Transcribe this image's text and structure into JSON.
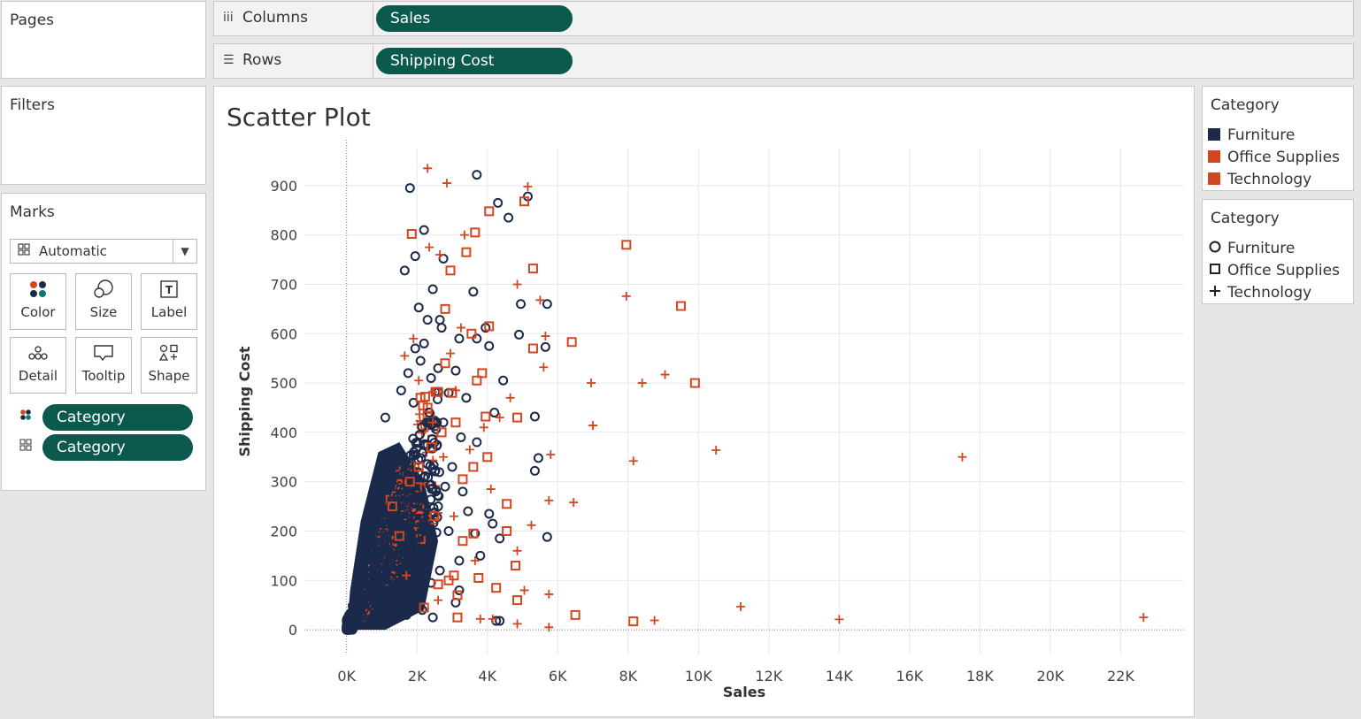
{
  "pages": {
    "title": "Pages"
  },
  "filters": {
    "title": "Filters"
  },
  "shelves": {
    "columns": {
      "label": "Columns",
      "icon": "iii",
      "pill": "Sales"
    },
    "rows": {
      "label": "Rows",
      "icon": "☰",
      "pill": "Shipping Cost"
    }
  },
  "marks": {
    "title": "Marks",
    "mark_type": "Automatic",
    "buttons": [
      {
        "label": "Color",
        "icon": "color-icon"
      },
      {
        "label": "Size",
        "icon": "size-icon"
      },
      {
        "label": "Label",
        "icon": "label-icon"
      },
      {
        "label": "Detail",
        "icon": "detail-icon"
      },
      {
        "label": "Tooltip",
        "icon": "tooltip-icon"
      },
      {
        "label": "Shape",
        "icon": "shape-icon"
      }
    ],
    "fields": [
      {
        "label": "Category",
        "encoding": "color"
      },
      {
        "label": "Category",
        "encoding": "shape"
      }
    ]
  },
  "colors": {
    "furniture": "#1b2a4a",
    "office_supplies": "#d4461f",
    "technology": "#d4461f",
    "pill": "#0b5a4d"
  },
  "legends": {
    "color": {
      "title": "Category",
      "items": [
        {
          "label": "Furniture",
          "color": "#1b2a4a"
        },
        {
          "label": "Office Supplies",
          "color": "#d4461f"
        },
        {
          "label": "Technology",
          "color": "#d4461f"
        }
      ]
    },
    "shape": {
      "title": "Category",
      "items": [
        {
          "label": "Furniture",
          "shape": "circle"
        },
        {
          "label": "Office Supplies",
          "shape": "square"
        },
        {
          "label": "Technology",
          "shape": "plus"
        }
      ]
    }
  },
  "chart_data": {
    "type": "scatter",
    "title": "Scatter Plot",
    "xlabel": "Sales",
    "ylabel": "Shipping Cost",
    "xlim": [
      -1200,
      23800
    ],
    "ylim": [
      -50,
      975
    ],
    "x_ticks": [
      0,
      2000,
      4000,
      6000,
      8000,
      10000,
      12000,
      14000,
      16000,
      18000,
      20000,
      22000
    ],
    "x_tick_labels": [
      "0K",
      "2K",
      "4K",
      "6K",
      "8K",
      "10K",
      "12K",
      "14K",
      "16K",
      "18K",
      "20K",
      "22K"
    ],
    "y_ticks": [
      0,
      100,
      200,
      300,
      400,
      500,
      600,
      700,
      800,
      900
    ],
    "grid": true,
    "series": [
      {
        "name": "Furniture",
        "shape": "circle",
        "color": "#1b2a4a",
        "points": [
          [
            3700,
            922
          ],
          [
            1800,
            895
          ],
          [
            4300,
            865
          ],
          [
            5150,
            878
          ],
          [
            4600,
            835
          ],
          [
            2200,
            810
          ],
          [
            1950,
            757
          ],
          [
            2750,
            752
          ],
          [
            1650,
            728
          ],
          [
            2450,
            690
          ],
          [
            4950,
            660
          ],
          [
            3600,
            685
          ],
          [
            2050,
            653
          ],
          [
            2300,
            628
          ],
          [
            5700,
            660
          ],
          [
            2650,
            628
          ],
          [
            3950,
            612
          ],
          [
            4050,
            575
          ],
          [
            4900,
            598
          ],
          [
            5650,
            573
          ],
          [
            2700,
            612
          ],
          [
            3200,
            590
          ],
          [
            3700,
            590
          ],
          [
            2200,
            580
          ],
          [
            1950,
            570
          ],
          [
            2100,
            545
          ],
          [
            2600,
            530
          ],
          [
            3100,
            525
          ],
          [
            1750,
            520
          ],
          [
            2400,
            510
          ],
          [
            4450,
            505
          ],
          [
            1550,
            485
          ],
          [
            2900,
            480
          ],
          [
            3400,
            470
          ],
          [
            1900,
            460
          ],
          [
            5350,
            432
          ],
          [
            2350,
            440
          ],
          [
            2750,
            420
          ],
          [
            4200,
            440
          ],
          [
            3250,
            390
          ],
          [
            3700,
            380
          ],
          [
            5450,
            348
          ],
          [
            5350,
            322
          ],
          [
            5700,
            188
          ],
          [
            4350,
            185
          ],
          [
            4150,
            215
          ],
          [
            4050,
            235
          ],
          [
            3650,
            195
          ],
          [
            3200,
            140
          ],
          [
            2650,
            120
          ],
          [
            2400,
            95
          ],
          [
            3200,
            80
          ],
          [
            2000,
            100
          ],
          [
            2450,
            25
          ],
          [
            4250,
            18
          ],
          [
            4350,
            18
          ],
          [
            3100,
            55
          ],
          [
            2150,
            40
          ],
          [
            1700,
            30
          ],
          [
            3450,
            240
          ],
          [
            3000,
            330
          ],
          [
            2800,
            290
          ],
          [
            3300,
            280
          ],
          [
            2600,
            250
          ],
          [
            2900,
            200
          ],
          [
            3800,
            150
          ],
          [
            2200,
            160
          ],
          [
            1600,
            60
          ],
          [
            1300,
            330
          ],
          [
            1100,
            430
          ]
        ]
      },
      {
        "name": "Office Supplies",
        "shape": "square",
        "color": "#d4461f",
        "points": [
          [
            1850,
            802
          ],
          [
            3650,
            805
          ],
          [
            3400,
            765
          ],
          [
            7950,
            780
          ],
          [
            5300,
            732
          ],
          [
            9500,
            656
          ],
          [
            4050,
            848
          ],
          [
            5050,
            868
          ],
          [
            2950,
            728
          ],
          [
            2800,
            650
          ],
          [
            4050,
            615
          ],
          [
            5300,
            570
          ],
          [
            6400,
            583
          ],
          [
            9900,
            500
          ],
          [
            3700,
            505
          ],
          [
            3850,
            520
          ],
          [
            4850,
            430
          ],
          [
            3950,
            432
          ],
          [
            3000,
            480
          ],
          [
            2300,
            450
          ],
          [
            2700,
            400
          ],
          [
            3600,
            330
          ],
          [
            4000,
            350
          ],
          [
            3300,
            305
          ],
          [
            2050,
            330
          ],
          [
            4550,
            255
          ],
          [
            4550,
            200
          ],
          [
            3600,
            195
          ],
          [
            4800,
            130
          ],
          [
            3050,
            110
          ],
          [
            4250,
            85
          ],
          [
            4850,
            60
          ],
          [
            3750,
            105
          ],
          [
            2900,
            100
          ],
          [
            2600,
            92
          ],
          [
            3150,
            70
          ],
          [
            3150,
            25
          ],
          [
            6500,
            30
          ],
          [
            8150,
            17
          ],
          [
            2200,
            45
          ],
          [
            1800,
            300
          ],
          [
            2400,
            370
          ],
          [
            3100,
            420
          ],
          [
            1500,
            190
          ],
          [
            2800,
            540
          ],
          [
            2100,
            470
          ],
          [
            3550,
            600
          ],
          [
            1300,
            250
          ],
          [
            3300,
            180
          ],
          [
            2500,
            230
          ]
        ]
      },
      {
        "name": "Technology",
        "shape": "plus",
        "color": "#d4461f",
        "points": [
          [
            2300,
            935
          ],
          [
            2850,
            905
          ],
          [
            5150,
            898
          ],
          [
            3350,
            800
          ],
          [
            2350,
            775
          ],
          [
            2650,
            760
          ],
          [
            4850,
            700
          ],
          [
            5500,
            668
          ],
          [
            7950,
            676
          ],
          [
            3250,
            612
          ],
          [
            5650,
            595
          ],
          [
            1900,
            590
          ],
          [
            2950,
            560
          ],
          [
            5600,
            532
          ],
          [
            9050,
            517
          ],
          [
            6950,
            500
          ],
          [
            8400,
            500
          ],
          [
            4650,
            470
          ],
          [
            7000,
            414
          ],
          [
            10500,
            364
          ],
          [
            17500,
            350
          ],
          [
            8150,
            342
          ],
          [
            4350,
            430
          ],
          [
            3900,
            410
          ],
          [
            5800,
            355
          ],
          [
            6450,
            258
          ],
          [
            5750,
            262
          ],
          [
            5250,
            212
          ],
          [
            4850,
            160
          ],
          [
            5750,
            72
          ],
          [
            5050,
            80
          ],
          [
            11200,
            47
          ],
          [
            14000,
            21
          ],
          [
            8750,
            19
          ],
          [
            22650,
            25
          ],
          [
            5750,
            5
          ],
          [
            4850,
            12
          ],
          [
            4150,
            22
          ],
          [
            3800,
            22
          ],
          [
            1650,
            555
          ],
          [
            2050,
            505
          ],
          [
            3100,
            485
          ],
          [
            2450,
            420
          ],
          [
            3500,
            365
          ],
          [
            2750,
            350
          ],
          [
            4100,
            285
          ],
          [
            3050,
            230
          ],
          [
            3650,
            140
          ],
          [
            2600,
            60
          ],
          [
            1700,
            110
          ]
        ]
      }
    ]
  }
}
